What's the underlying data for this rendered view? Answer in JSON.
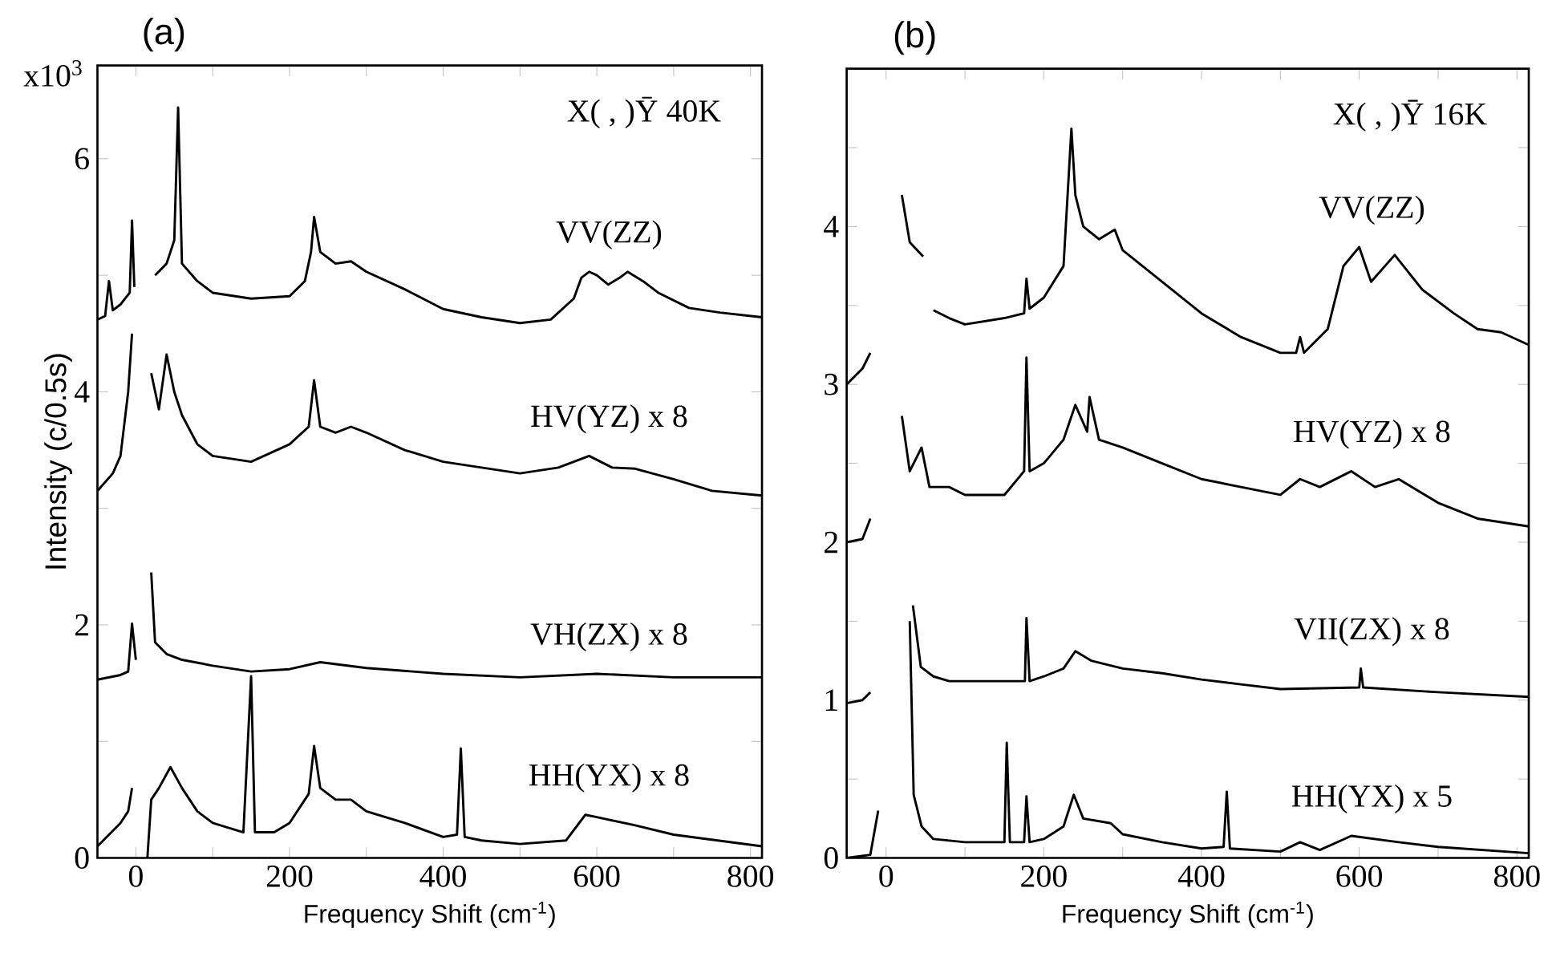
{
  "chart_data": [
    {
      "type": "line",
      "title": "(a)",
      "xlabel": "Frequency Shift (cm$^{-1}$)",
      "ylabel": "Intensity (c/0.5s)",
      "annotations": [
        "X( , )Ȳ 40K",
        "x10$^{3}$"
      ],
      "xlim": [
        -50,
        815
      ],
      "ylim": [
        0,
        6.8
      ],
      "xticks": [
        0,
        {
          "value": 100,
          "label": null
        },
        200,
        {
          "value": 300,
          "label": null
        },
        400,
        {
          "value": 500,
          "label": null
        },
        600,
        {
          "value": 700,
          "label": null
        },
        800
      ],
      "yticks": [
        0,
        {
          "value": 1,
          "label": null
        },
        2,
        {
          "value": 3,
          "label": null
        },
        4,
        {
          "value": 5,
          "label": null
        },
        6
      ],
      "series": [
        {
          "name": "VV(ZZ)",
          "color": "#000000",
          "x": [
            -50,
            -40,
            -35,
            -30,
            -20,
            -8,
            -5,
            -2,
            5,
            10,
            15,
            20,
            25,
            40,
            50,
            55,
            60,
            80,
            100,
            150,
            200,
            220,
            228,
            232,
            240,
            260,
            280,
            300,
            350,
            400,
            450,
            500,
            540,
            570,
            580,
            590,
            600,
            615,
            630,
            640,
            660,
            680,
            720,
            760,
            815
          ],
          "values": [
            4.62,
            4.65,
            4.95,
            4.7,
            4.75,
            4.85,
            5.47,
            4.9,
            null,
            null,
            null,
            null,
            5.0,
            5.1,
            5.3,
            6.44,
            5.1,
            4.95,
            4.85,
            4.8,
            4.82,
            4.95,
            5.2,
            5.5,
            5.2,
            5.1,
            5.12,
            5.03,
            4.88,
            4.71,
            4.64,
            4.59,
            4.62,
            4.8,
            4.98,
            5.03,
            5.0,
            4.92,
            4.98,
            5.03,
            4.95,
            4.85,
            4.72,
            4.68,
            4.64
          ]
        },
        {
          "name": "HV(YZ) x 8",
          "color": "#000000",
          "x": [
            -50,
            -30,
            -20,
            -10,
            -5,
            5,
            10,
            15,
            20,
            30,
            40,
            50,
            60,
            80,
            100,
            150,
            200,
            225,
            232,
            240,
            260,
            280,
            300,
            350,
            400,
            450,
            500,
            550,
            590,
            620,
            650,
            700,
            750,
            815
          ],
          "values": [
            3.15,
            3.3,
            3.45,
            4.0,
            4.5,
            null,
            null,
            null,
            4.16,
            3.85,
            4.32,
            4.0,
            3.8,
            3.55,
            3.45,
            3.4,
            3.55,
            3.7,
            4.1,
            3.7,
            3.65,
            3.7,
            3.65,
            3.5,
            3.4,
            3.35,
            3.3,
            3.35,
            3.45,
            3.35,
            3.34,
            3.25,
            3.15,
            3.11
          ]
        },
        {
          "name": "VH(ZX) x 8",
          "color": "#000000",
          "x": [
            -50,
            -20,
            -10,
            -5,
            0,
            5,
            10,
            15,
            20,
            25,
            40,
            60,
            100,
            150,
            200,
            240,
            300,
            400,
            500,
            600,
            700,
            815
          ],
          "values": [
            1.53,
            1.57,
            1.6,
            2.01,
            1.7,
            null,
            null,
            null,
            2.45,
            1.85,
            1.75,
            1.7,
            1.65,
            1.6,
            1.62,
            1.68,
            1.63,
            1.58,
            1.55,
            1.58,
            1.55,
            1.55
          ]
        },
        {
          "name": "HH(YX) x 8",
          "color": "#000000",
          "x": [
            -50,
            -20,
            -10,
            -5,
            5,
            10,
            15,
            20,
            30,
            45,
            60,
            80,
            100,
            140,
            150,
            155,
            180,
            200,
            225,
            232,
            240,
            260,
            280,
            300,
            350,
            400,
            418,
            423,
            428,
            450,
            500,
            560,
            585,
            600,
            650,
            700,
            815
          ],
          "values": [
            0.1,
            0.3,
            0.4,
            0.6,
            null,
            null,
            0.0,
            0.5,
            0.6,
            0.78,
            0.6,
            0.4,
            0.3,
            0.22,
            1.56,
            0.22,
            0.22,
            0.3,
            0.55,
            0.96,
            0.6,
            0.5,
            0.5,
            0.4,
            0.3,
            0.18,
            0.2,
            0.94,
            0.18,
            0.15,
            0.12,
            0.15,
            0.37,
            0.35,
            0.28,
            0.2,
            0.1
          ]
        }
      ]
    },
    {
      "type": "line",
      "title": "(b)",
      "xlabel": "Frequency Shift (cm$^{-1}$)",
      "annotations": [
        "X( , )Ȳ 16K"
      ],
      "xlim": [
        -50,
        815
      ],
      "ylim": [
        0,
        5
      ],
      "xticks": [
        0,
        {
          "value": 100,
          "label": null
        },
        200,
        {
          "value": 300,
          "label": null
        },
        400,
        {
          "value": 500,
          "label": null
        },
        600,
        {
          "value": 700,
          "label": null
        },
        800
      ],
      "yticks": [
        0,
        {
          "value": 0.5,
          "label": null
        },
        1,
        {
          "value": 1.5,
          "label": null
        },
        2,
        {
          "value": 2.5,
          "label": null
        },
        3,
        {
          "value": 3.5,
          "label": null
        },
        4,
        {
          "value": 4.5,
          "label": null
        }
      ],
      "series": [
        {
          "name": "VV(ZZ)",
          "color": "#000000",
          "x": [
            -50,
            -30,
            -20,
            -15,
            -5,
            5,
            15,
            20,
            30,
            47,
            54,
            60,
            80,
            100,
            150,
            175,
            178,
            182,
            200,
            225,
            235,
            240,
            250,
            270,
            290,
            300,
            350,
            400,
            450,
            500,
            520,
            525,
            530,
            560,
            580,
            600,
            615,
            645,
            680,
            720,
            750,
            780,
            815
          ],
          "values": [
            3.0,
            3.1,
            3.2,
            null,
            null,
            null,
            null,
            4.2,
            3.9,
            3.81,
            null,
            3.47,
            3.42,
            3.38,
            3.42,
            3.45,
            3.67,
            3.48,
            3.55,
            3.75,
            4.62,
            4.2,
            4.0,
            3.92,
            3.98,
            3.85,
            3.65,
            3.45,
            3.3,
            3.2,
            3.2,
            3.3,
            3.2,
            3.35,
            3.75,
            3.87,
            3.65,
            3.82,
            3.6,
            3.45,
            3.35,
            3.33,
            3.25
          ]
        },
        {
          "name": "HV(YZ) x 8",
          "color": "#000000",
          "x": [
            -50,
            -30,
            -20,
            -15,
            -5,
            5,
            15,
            20,
            30,
            45,
            55,
            80,
            100,
            150,
            175,
            178,
            182,
            200,
            225,
            240,
            255,
            258,
            270,
            300,
            350,
            400,
            450,
            500,
            525,
            550,
            590,
            620,
            650,
            700,
            750,
            815
          ],
          "values": [
            2.0,
            2.02,
            2.15,
            null,
            null,
            null,
            null,
            2.8,
            2.45,
            2.6,
            2.35,
            2.35,
            2.3,
            2.3,
            2.45,
            3.17,
            2.45,
            2.5,
            2.65,
            2.87,
            2.7,
            2.92,
            2.65,
            2.6,
            2.5,
            2.4,
            2.35,
            2.3,
            2.4,
            2.35,
            2.45,
            2.35,
            2.4,
            2.25,
            2.15,
            2.1
          ]
        },
        {
          "name": "VII(ZX) x 8",
          "color": "#000000",
          "x": [
            -50,
            -30,
            -20,
            -15,
            -5,
            5,
            15,
            25,
            34,
            44,
            60,
            80,
            100,
            150,
            176,
            178,
            182,
            200,
            225,
            240,
            260,
            300,
            350,
            400,
            450,
            500,
            600,
            602,
            605,
            700,
            815
          ],
          "values": [
            0.98,
            1.0,
            1.05,
            null,
            null,
            null,
            null,
            null,
            1.6,
            1.21,
            1.15,
            1.12,
            1.12,
            1.12,
            1.12,
            1.52,
            1.12,
            1.15,
            1.2,
            1.31,
            1.25,
            1.2,
            1.17,
            1.13,
            1.1,
            1.07,
            1.08,
            1.2,
            1.08,
            1.05,
            1.02
          ]
        },
        {
          "name": "HH(YX) x 5",
          "color": "#000000",
          "x": [
            -50,
            -20,
            -10,
            -5,
            5,
            15,
            25,
            30,
            35,
            45,
            60,
            100,
            150,
            153,
            157,
            175,
            178,
            182,
            200,
            225,
            238,
            250,
            285,
            300,
            350,
            400,
            428,
            432,
            436,
            500,
            525,
            550,
            590,
            650,
            700,
            815
          ],
          "values": [
            0.0,
            0.02,
            0.3,
            null,
            null,
            null,
            null,
            1.5,
            0.4,
            0.2,
            0.12,
            0.1,
            0.1,
            0.73,
            0.1,
            0.1,
            0.39,
            0.1,
            0.12,
            0.2,
            0.4,
            0.25,
            0.22,
            0.15,
            0.1,
            0.06,
            0.07,
            0.42,
            0.06,
            0.04,
            0.1,
            0.05,
            0.14,
            0.1,
            0.07,
            0.03
          ]
        }
      ]
    }
  ]
}
